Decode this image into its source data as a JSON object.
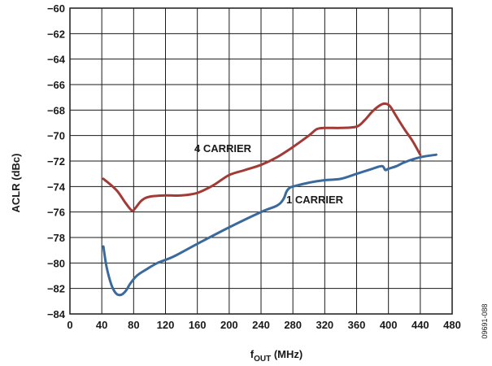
{
  "chart_data": {
    "type": "line",
    "xlabel_main": "f",
    "xlabel_sub": "OUT",
    "xlabel_unit": " (MHz)",
    "ylabel": "ACLR (dBc)",
    "xlim": [
      0,
      480
    ],
    "ylim": [
      -84,
      -60
    ],
    "grid": true,
    "x_ticks": [
      0,
      40,
      80,
      120,
      160,
      200,
      240,
      280,
      320,
      360,
      400,
      440,
      480
    ],
    "y_ticks": [
      -60,
      -62,
      -64,
      -66,
      -68,
      -70,
      -72,
      -74,
      -76,
      -78,
      -80,
      -82,
      -84
    ],
    "x_tick_labels": [
      "0",
      "40",
      "80",
      "120",
      "160",
      "200",
      "240",
      "280",
      "320",
      "360",
      "400",
      "440",
      "480"
    ],
    "y_tick_labels": [
      "−60",
      "−62",
      "−64",
      "−66",
      "−68",
      "−70",
      "−72",
      "−74",
      "−76",
      "−78",
      "−80",
      "−82",
      "−84"
    ],
    "figure_id": "09691-088",
    "series": [
      {
        "name": "4 CARRIER",
        "color": "#a23a36",
        "x": [
          42,
          50,
          60,
          70,
          78,
          82,
          90,
          100,
          120,
          140,
          160,
          180,
          200,
          220,
          240,
          260,
          280,
          300,
          310,
          320,
          340,
          360,
          370,
          380,
          390,
          396,
          402,
          410,
          420,
          430,
          440
        ],
        "y": [
          -73.4,
          -73.8,
          -74.4,
          -75.3,
          -75.9,
          -75.7,
          -75.1,
          -74.8,
          -74.7,
          -74.7,
          -74.5,
          -73.9,
          -73.1,
          -72.7,
          -72.3,
          -71.7,
          -70.9,
          -70.0,
          -69.5,
          -69.4,
          -69.4,
          -69.3,
          -68.8,
          -68.1,
          -67.6,
          -67.5,
          -67.7,
          -68.5,
          -69.5,
          -70.4,
          -71.5
        ]
      },
      {
        "name": "1 CARRIER",
        "color": "#3a6a9c",
        "x": [
          42,
          46,
          52,
          58,
          64,
          70,
          76,
          84,
          96,
          110,
          130,
          160,
          200,
          240,
          260,
          268,
          272,
          276,
          280,
          300,
          320,
          340,
          360,
          380,
          392,
          396,
          400,
          410,
          420,
          440,
          460
        ],
        "y": [
          -78.7,
          -80.3,
          -81.7,
          -82.4,
          -82.5,
          -82.2,
          -81.6,
          -81.0,
          -80.5,
          -80.0,
          -79.5,
          -78.5,
          -77.2,
          -76.0,
          -75.5,
          -75.0,
          -74.4,
          -74.1,
          -74.0,
          -73.7,
          -73.5,
          -73.4,
          -73.0,
          -72.6,
          -72.4,
          -72.7,
          -72.6,
          -72.4,
          -72.1,
          -71.7,
          -71.5
        ]
      }
    ]
  }
}
